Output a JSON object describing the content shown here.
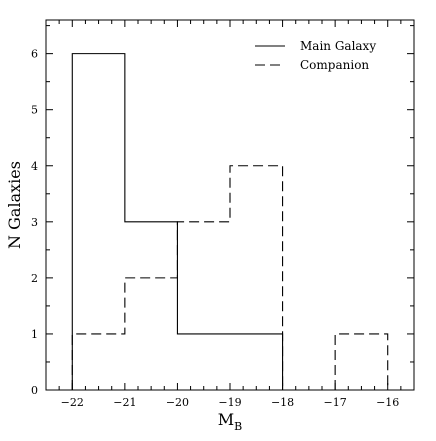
{
  "chart_data": {
    "type": "bar",
    "xlabel": "M",
    "xlabel_sub": "B",
    "ylabel": "N Galaxies",
    "xlim": [
      -22.5,
      -15.5
    ],
    "ylim": [
      0,
      6.6
    ],
    "x_ticks": [
      -22,
      -21,
      -20,
      -19,
      -18,
      -17,
      -16
    ],
    "x_tick_labels": [
      "−22",
      "−21",
      "−20",
      "−19",
      "−18",
      "−17",
      "−16"
    ],
    "y_ticks": [
      0,
      1,
      2,
      3,
      4,
      5,
      6
    ],
    "y_tick_labels": [
      "0",
      "1",
      "2",
      "3",
      "4",
      "5",
      "6"
    ],
    "bin_edges": [
      -22,
      -21,
      -20,
      -19,
      -18,
      -17,
      -16
    ],
    "legend_position": "top-right",
    "series": [
      {
        "name": "Main Galaxy",
        "style": "solid",
        "values": [
          6,
          3,
          1,
          1,
          0,
          0
        ]
      },
      {
        "name": "Companion",
        "style": "dashed",
        "values": [
          1,
          2,
          3,
          4,
          0,
          1
        ]
      }
    ],
    "colors": {
      "line": "#000000",
      "background": "#ffffff"
    }
  }
}
